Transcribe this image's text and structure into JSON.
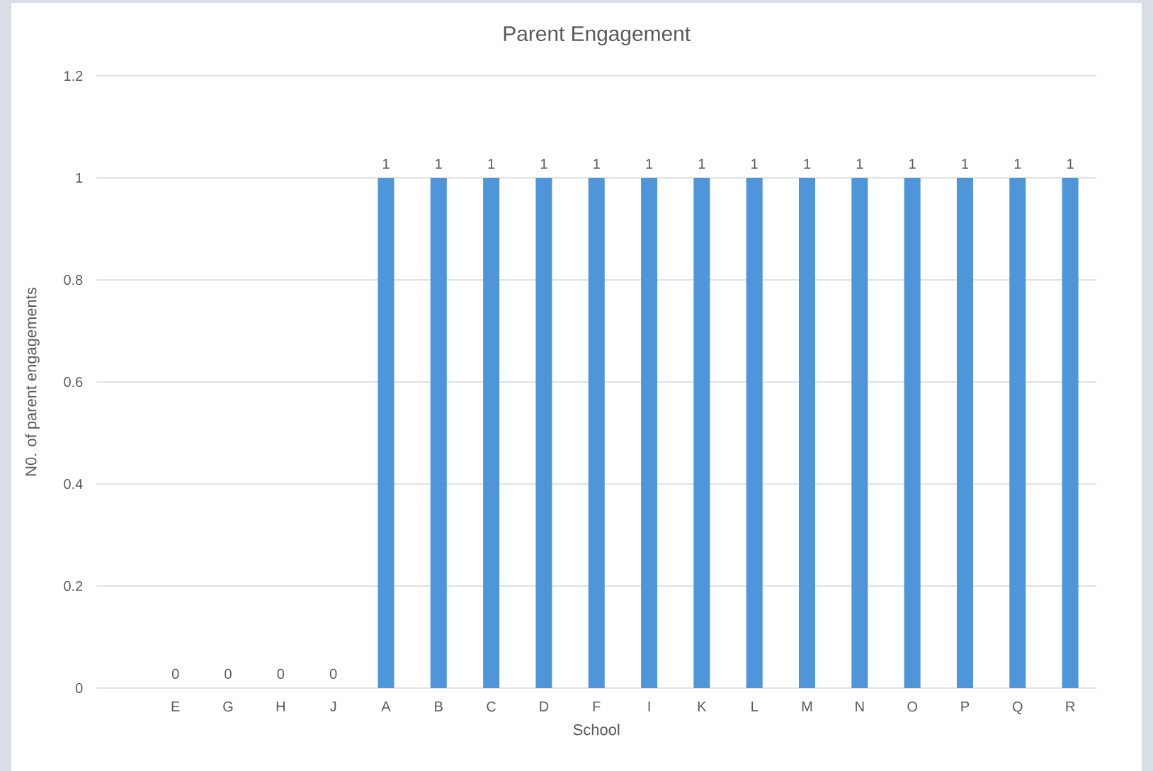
{
  "chart_data": {
    "type": "bar",
    "title": "Parent Engagement",
    "xlabel": "School",
    "ylabel": "N0. of parent engagements",
    "categories": [
      null,
      "E",
      "G",
      "H",
      "J",
      "A",
      "B",
      "C",
      "D",
      "F",
      "I",
      "K",
      "L",
      "M",
      "N",
      "O",
      "P",
      "Q",
      "R"
    ],
    "values": [
      null,
      0,
      0,
      0,
      0,
      1,
      1,
      1,
      1,
      1,
      1,
      1,
      1,
      1,
      1,
      1,
      1,
      1,
      1
    ],
    "color": "#4e95d9",
    "ylim": [
      0,
      1.2
    ],
    "yticks": [
      0,
      0.2,
      0.4,
      0.6,
      0.8,
      1,
      1.2
    ],
    "grid": "y",
    "data_labels": true
  }
}
